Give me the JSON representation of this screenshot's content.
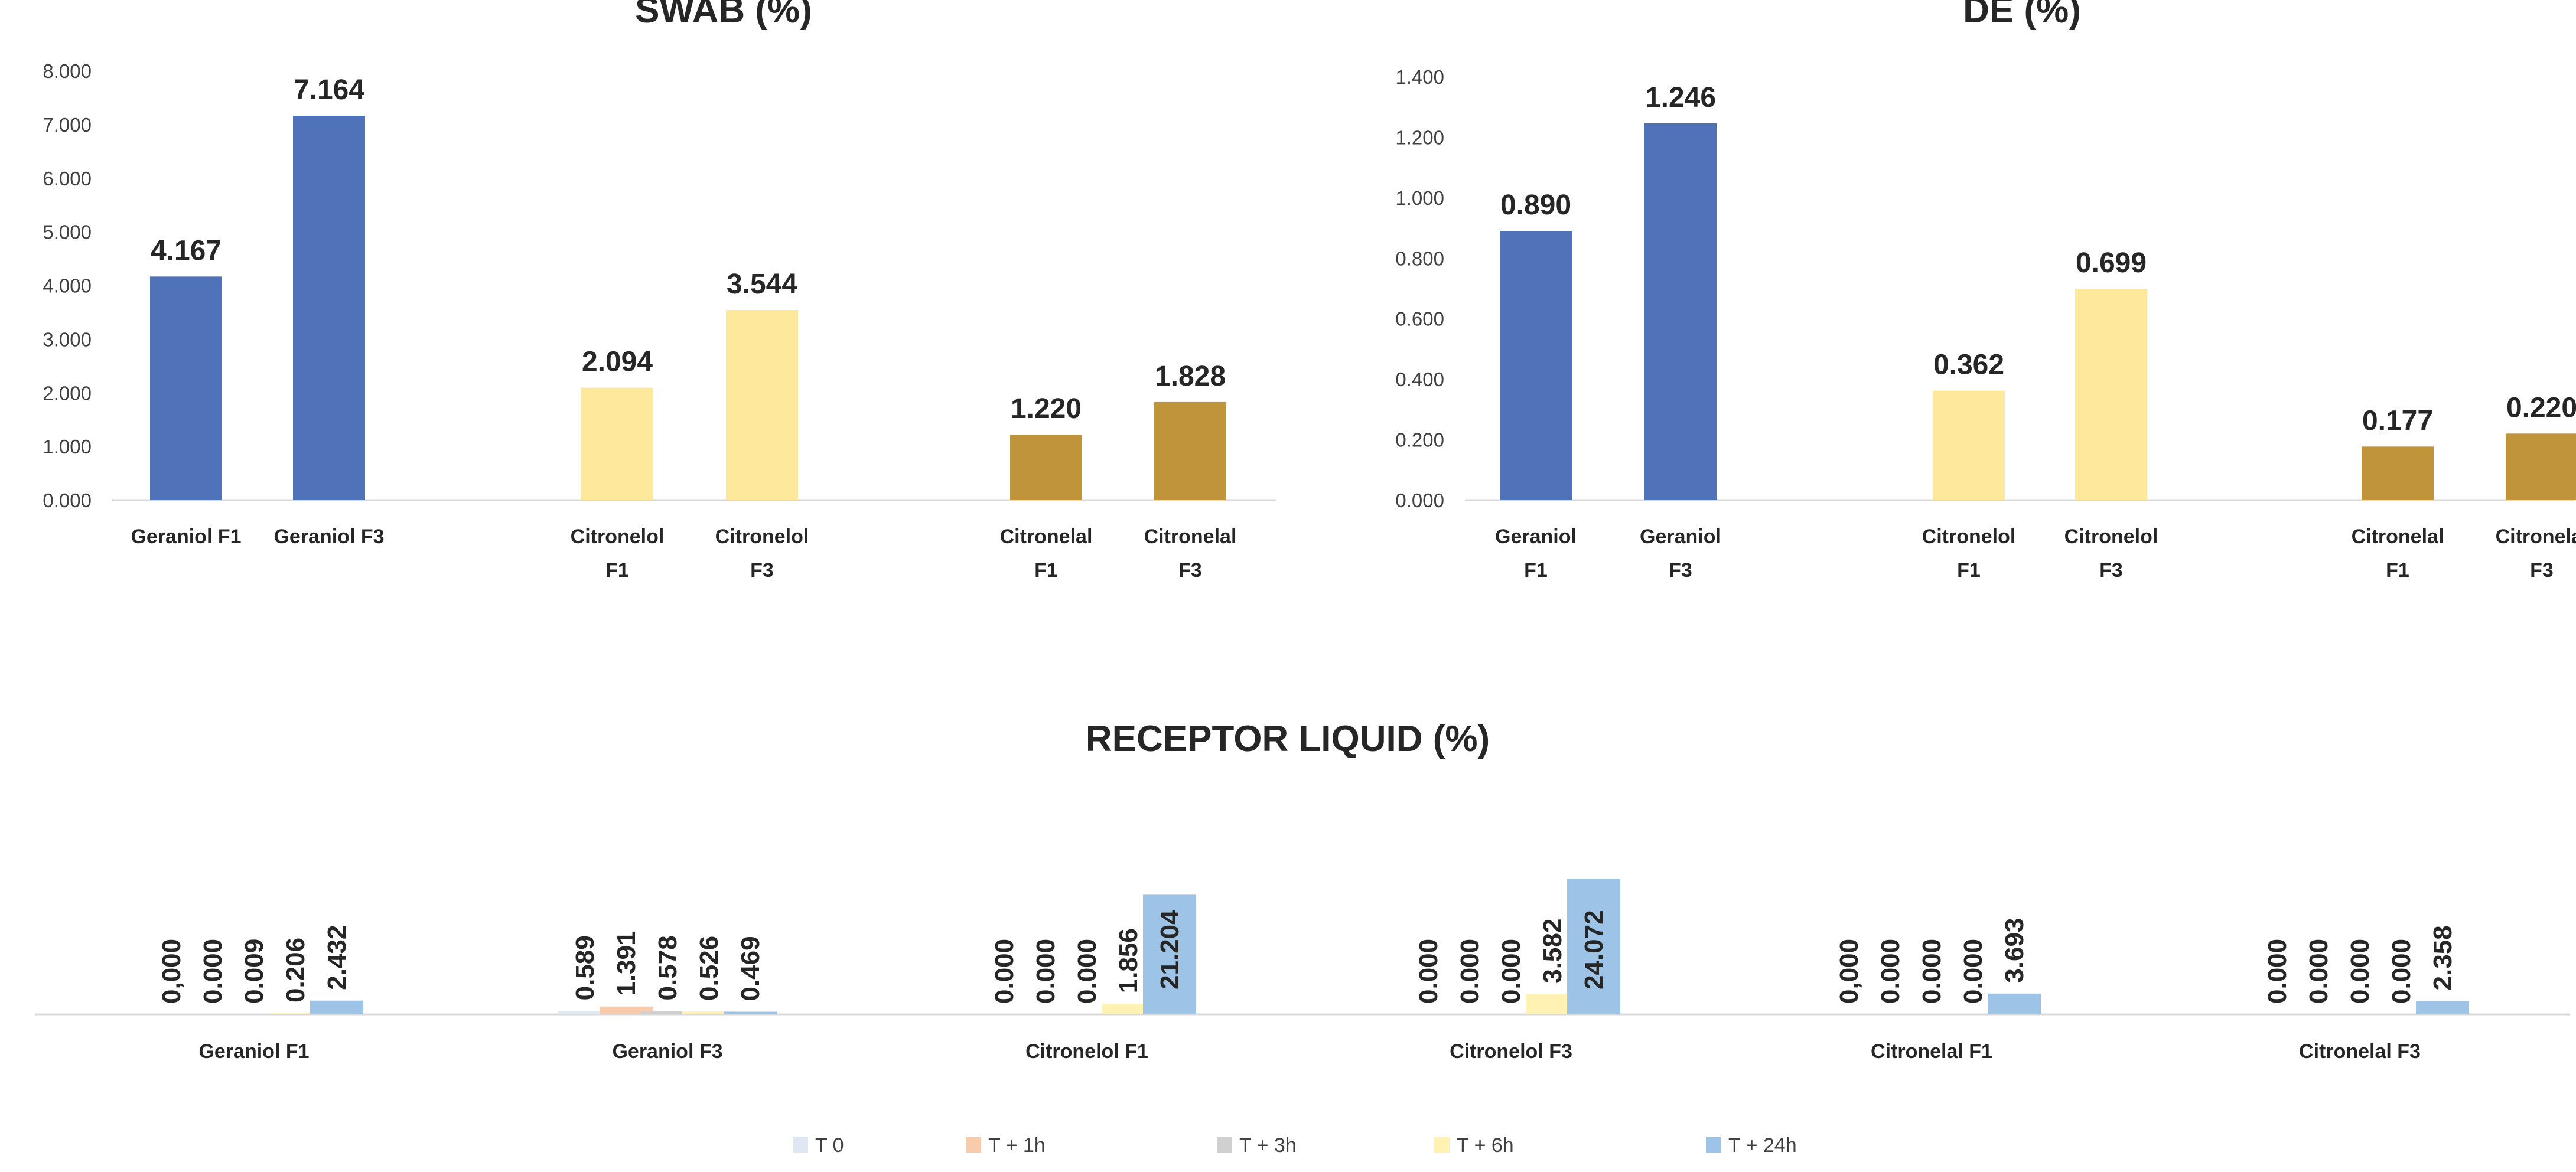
{
  "chart_data": [
    {
      "type": "bar",
      "title": "SWAB (%)",
      "ylim": [
        0,
        8
      ],
      "yticks": [
        "0.000",
        "1.000",
        "2.000",
        "3.000",
        "4.000",
        "5.000",
        "6.000",
        "7.000",
        "8.000"
      ],
      "categories": [
        {
          "lines": [
            "Geraniol F1"
          ]
        },
        {
          "lines": [
            "Geraniol F3"
          ]
        },
        {
          "lines": [
            "Citronelol",
            "F1"
          ]
        },
        {
          "lines": [
            "Citronelol",
            "F3"
          ]
        },
        {
          "lines": [
            "Citronelal",
            "F1"
          ]
        },
        {
          "lines": [
            "Citronelal",
            "F3"
          ]
        }
      ],
      "values": [
        4.167,
        7.164,
        2.094,
        3.544,
        1.22,
        1.828
      ],
      "labels": [
        "4.167",
        "7.164",
        "2.094",
        "3.544",
        "1.220",
        "1.828"
      ],
      "colors": [
        "#4f72b8",
        "#4f72b8",
        "#fde89b",
        "#fde89b",
        "#bf943a",
        "#bf943a"
      ]
    },
    {
      "type": "bar",
      "title": "DE (%)",
      "ylim": [
        0,
        1.4
      ],
      "yticks": [
        "0.000",
        "0.200",
        "0.400",
        "0.600",
        "0.800",
        "1.000",
        "1.200",
        "1.400"
      ],
      "categories": [
        {
          "lines": [
            "Geraniol",
            "F1"
          ]
        },
        {
          "lines": [
            "Geraniol",
            "F3"
          ]
        },
        {
          "lines": [
            "Citronelol",
            "F1"
          ]
        },
        {
          "lines": [
            "Citronelol",
            "F3"
          ]
        },
        {
          "lines": [
            "Citronelal",
            "F1"
          ]
        },
        {
          "lines": [
            "Citronelal",
            "F3"
          ]
        }
      ],
      "values": [
        0.89,
        1.246,
        0.362,
        0.699,
        0.177,
        0.22
      ],
      "labels": [
        "0.890",
        "1.246",
        "0.362",
        "0.699",
        "0.177",
        "0.220"
      ],
      "colors": [
        "#4f72b8",
        "#4f72b8",
        "#fde89b",
        "#fde89b",
        "#bf943a",
        "#bf943a"
      ]
    },
    {
      "type": "bar",
      "title": "RECEPTOR LIQUID (%)",
      "ylim": [
        0,
        24.072
      ],
      "categories": [
        "Geraniol F1",
        "Geraniol F3",
        "Citronelol F1",
        "Citronelol F3",
        "Citronelal F1",
        "Citronelal F3"
      ],
      "series": [
        {
          "name": "T 0",
          "color": "#dfe7f3",
          "values": [
            0.0,
            0.589,
            0.0,
            0.0,
            0.0,
            0.0
          ],
          "labels": [
            "0,000",
            "0.589",
            "0.000",
            "0.000",
            "0,000",
            "0.000"
          ]
        },
        {
          "name": "T + 1h",
          "color": "#f8cbad",
          "values": [
            0.0,
            1.391,
            0.0,
            0.0,
            0.0,
            0.0
          ],
          "labels": [
            "0.000",
            "1.391",
            "0.000",
            "0.000",
            "0.000",
            "0.000"
          ]
        },
        {
          "name": "T + 3h",
          "color": "#d0d0d0",
          "values": [
            0.009,
            0.578,
            0.0,
            0.0,
            0.0,
            0.0
          ],
          "labels": [
            "0.009",
            "0.578",
            "0.000",
            "0.000",
            "0.000",
            "0.000"
          ]
        },
        {
          "name": "T + 6h",
          "color": "#fff2b3",
          "values": [
            0.206,
            0.526,
            1.856,
            3.582,
            0.0,
            0.0
          ],
          "labels": [
            "0.206",
            "0.526",
            "1.856",
            "3.582",
            "0.000",
            "0.000"
          ]
        },
        {
          "name": "T  + 24h",
          "color": "#9dc3e6",
          "values": [
            2.432,
            0.469,
            21.204,
            24.072,
            3.693,
            2.358
          ],
          "labels": [
            "2.432",
            "0.469",
            "21.204",
            "24.072",
            "3.693",
            "2.358"
          ]
        }
      ]
    }
  ]
}
